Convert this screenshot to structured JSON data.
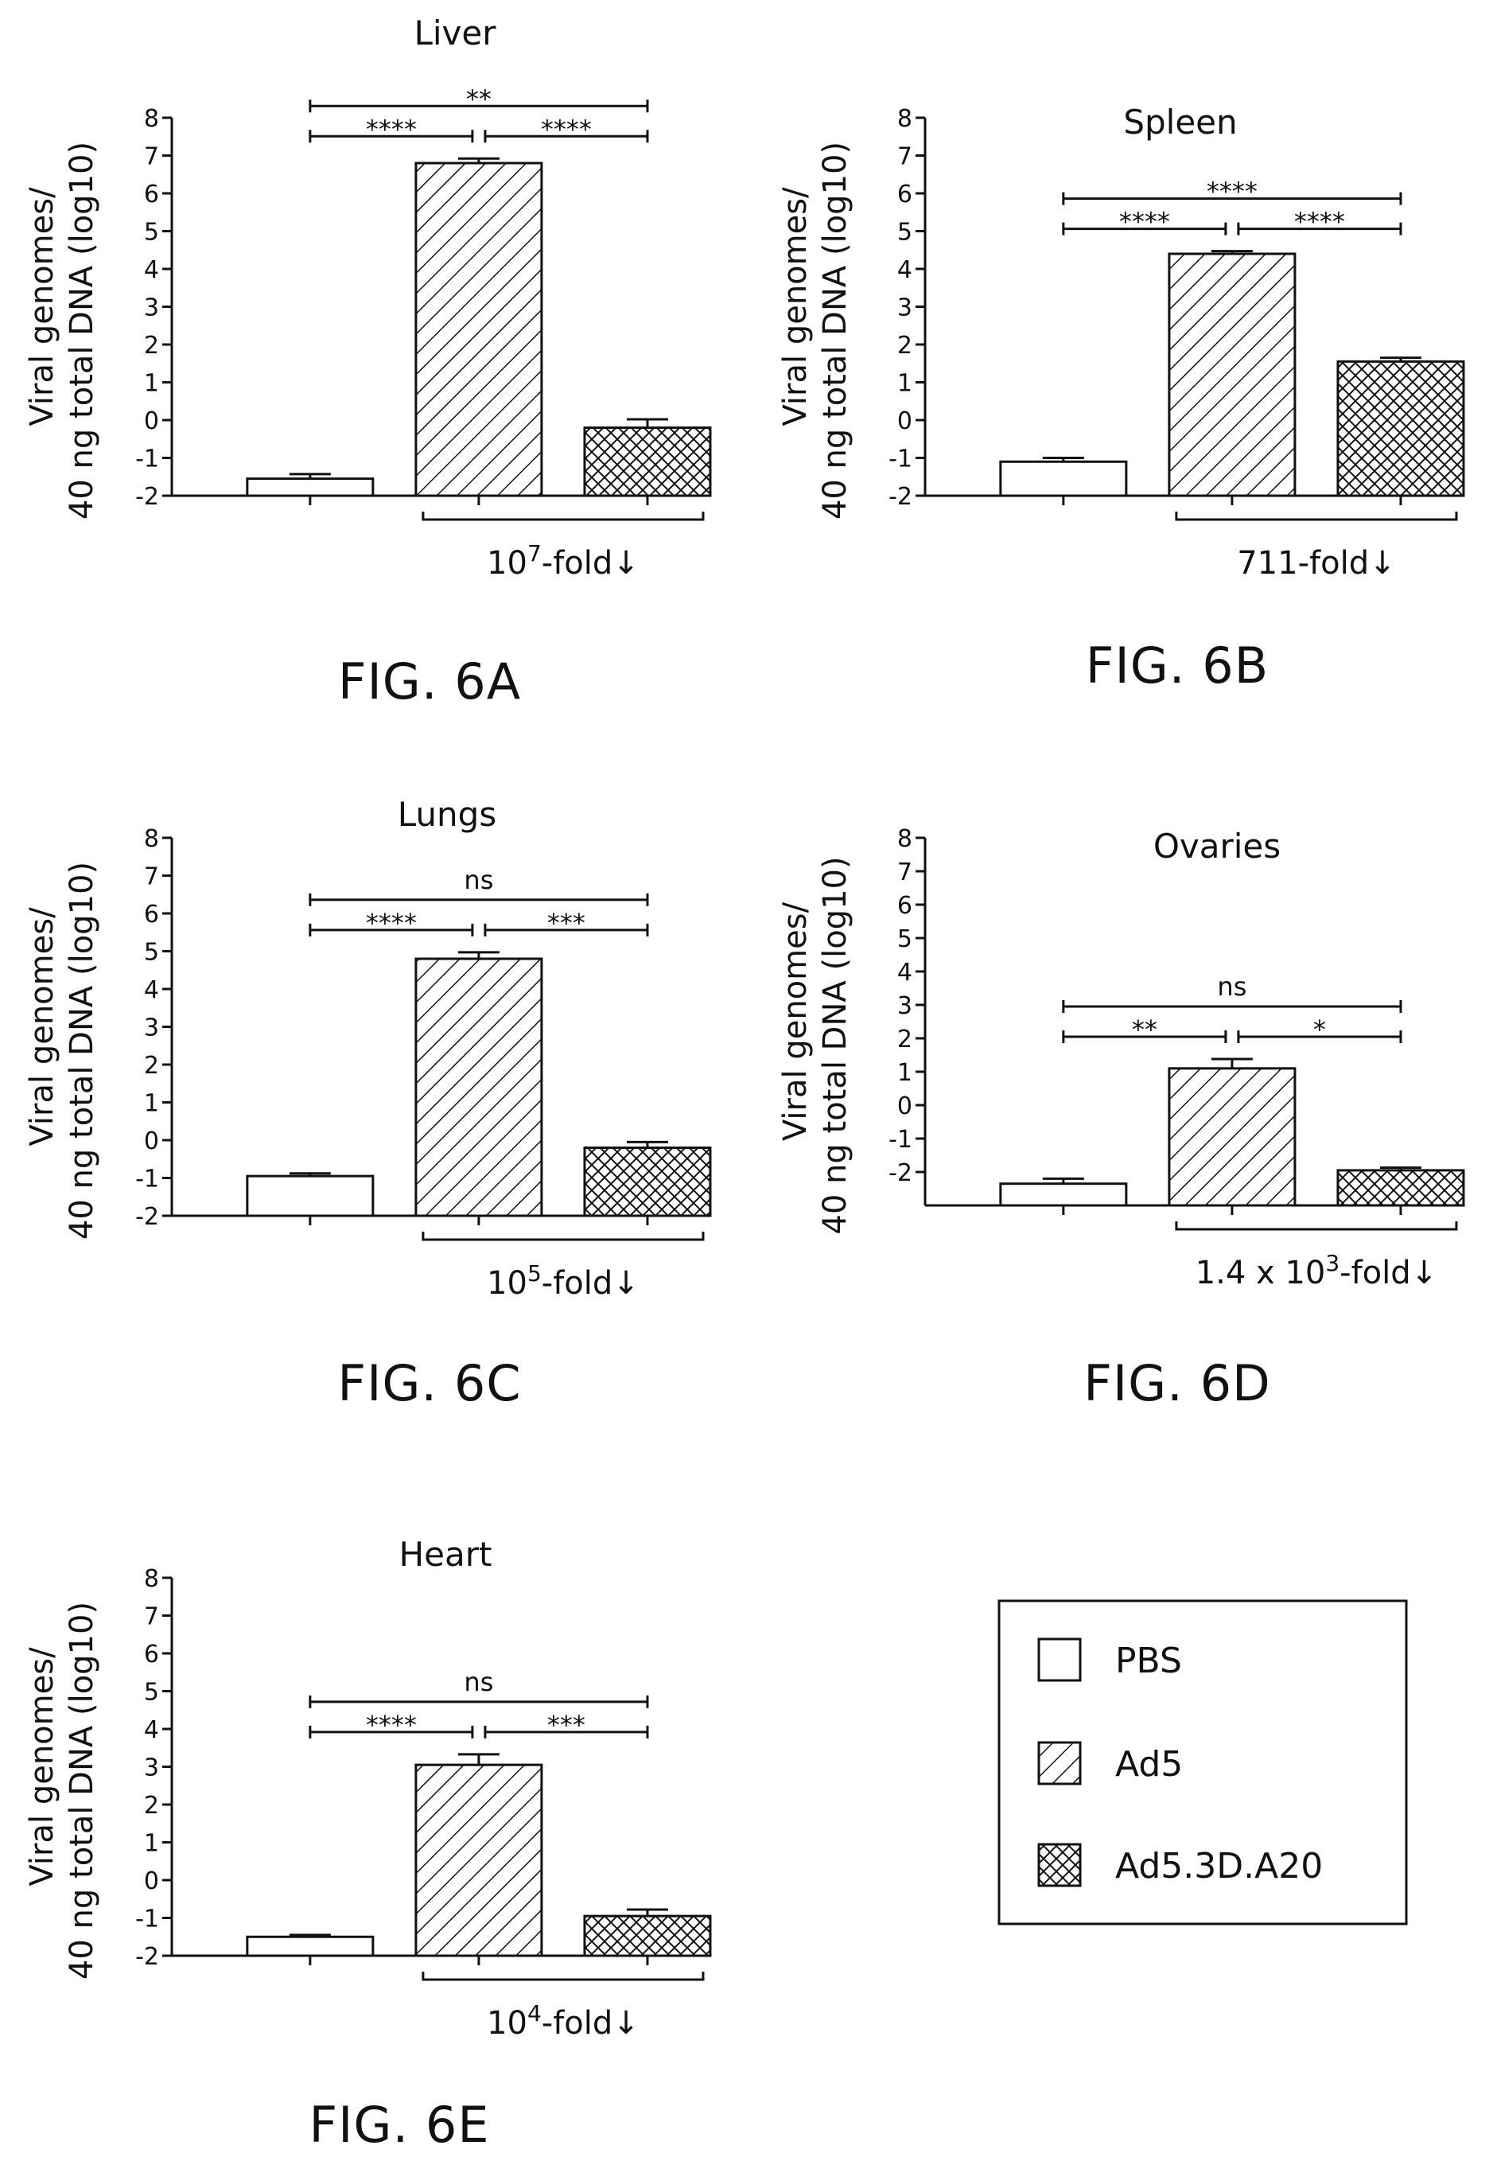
{
  "chart_data": [
    {
      "type": "bar",
      "figure_label": "FIG. 6A",
      "title": "Liver",
      "ylabel_line1": "Viral genomes/",
      "ylabel_line2": "40 ng total DNA (log10)",
      "categories": [
        "PBS",
        "Ad5",
        "Ad5.3D.A20"
      ],
      "values": [
        -1.55,
        6.8,
        -0.2
      ],
      "errors": [
        0.12,
        0.12,
        0.22
      ],
      "ylim": [
        -2,
        8
      ],
      "yticks": [
        "-2",
        "-1",
        "0",
        "1",
        "2",
        "3",
        "4",
        "5",
        "6",
        "7",
        "8"
      ],
      "significance": [
        {
          "from": 0,
          "to": 2,
          "label": "**"
        },
        {
          "from": 0,
          "to": 1,
          "label": "****"
        },
        {
          "from": 1,
          "to": 2,
          "label": "****"
        }
      ],
      "fold_change": {
        "base": "10",
        "sup": "7",
        "suffix": "-fold",
        "arrow": "↓"
      }
    },
    {
      "type": "bar",
      "figure_label": "FIG. 6B",
      "title": "Spleen",
      "ylabel_line1": "Viral genomes/",
      "ylabel_line2": "40 ng total DNA (log10)",
      "categories": [
        "PBS",
        "Ad5",
        "Ad5.3D.A20"
      ],
      "values": [
        -1.1,
        4.4,
        1.55
      ],
      "errors": [
        0.1,
        0.07,
        0.1
      ],
      "ylim": [
        -2,
        8
      ],
      "yticks": [
        "-2",
        "-1",
        "0",
        "1",
        "2",
        "3",
        "4",
        "5",
        "6",
        "7",
        "8"
      ],
      "significance": [
        {
          "from": 0,
          "to": 2,
          "label": "****"
        },
        {
          "from": 0,
          "to": 1,
          "label": "****"
        },
        {
          "from": 1,
          "to": 2,
          "label": "****"
        }
      ],
      "fold_change": {
        "base": "711",
        "sup": "",
        "suffix": "-fold",
        "arrow": "↓"
      }
    },
    {
      "type": "bar",
      "figure_label": "FIG. 6C",
      "title": "Lungs",
      "ylabel_line1": "Viral genomes/",
      "ylabel_line2": "40 ng total DNA (log10)",
      "categories": [
        "PBS",
        "Ad5",
        "Ad5.3D.A20"
      ],
      "values": [
        -0.95,
        4.8,
        -0.2
      ],
      "errors": [
        0.07,
        0.17,
        0.15
      ],
      "ylim": [
        -2,
        8
      ],
      "yticks": [
        "-2",
        "-1",
        "0",
        "1",
        "2",
        "3",
        "4",
        "5",
        "6",
        "7",
        "8"
      ],
      "significance": [
        {
          "from": 0,
          "to": 2,
          "label": "ns"
        },
        {
          "from": 0,
          "to": 1,
          "label": "****"
        },
        {
          "from": 1,
          "to": 2,
          "label": "***"
        }
      ],
      "fold_change": {
        "base": "10",
        "sup": "5",
        "suffix": "-fold",
        "arrow": "↓"
      }
    },
    {
      "type": "bar",
      "figure_label": "FIG. 6D",
      "title": "Ovaries",
      "ylabel_line1": "Viral genomes/",
      "ylabel_line2": "40 ng total DNA (log10)",
      "categories": [
        "PBS",
        "Ad5",
        "Ad5.3D.A20"
      ],
      "values": [
        -2.35,
        1.1,
        -1.95
      ],
      "errors": [
        0.15,
        0.28,
        0.08
      ],
      "ylim": [
        -3,
        8
      ],
      "yticks": [
        "-2",
        "-1",
        "0",
        "1",
        "2",
        "3",
        "4",
        "5",
        "6",
        "7",
        "8"
      ],
      "significance": [
        {
          "from": 0,
          "to": 2,
          "label": "ns"
        },
        {
          "from": 0,
          "to": 1,
          "label": "**"
        },
        {
          "from": 1,
          "to": 2,
          "label": "*"
        }
      ],
      "fold_change": {
        "base": "1.4 x 10",
        "sup": "3",
        "suffix": "-fold",
        "arrow": "↓"
      }
    },
    {
      "type": "bar",
      "figure_label": "FIG. 6E",
      "title": "Heart",
      "ylabel_line1": "Viral genomes/",
      "ylabel_line2": "40 ng total DNA (log10)",
      "categories": [
        "PBS",
        "Ad5",
        "Ad5.3D.A20"
      ],
      "values": [
        -1.5,
        3.05,
        -0.95
      ],
      "errors": [
        0.05,
        0.28,
        0.17
      ],
      "ylim": [
        -2,
        8
      ],
      "yticks": [
        "-2",
        "-1",
        "0",
        "1",
        "2",
        "3",
        "4",
        "5",
        "6",
        "7",
        "8"
      ],
      "significance": [
        {
          "from": 0,
          "to": 2,
          "label": "ns"
        },
        {
          "from": 0,
          "to": 1,
          "label": "****"
        },
        {
          "from": 1,
          "to": 2,
          "label": "***"
        }
      ],
      "fold_change": {
        "base": "10",
        "sup": "4",
        "suffix": "-fold",
        "arrow": "↓"
      }
    }
  ],
  "legend": {
    "items": [
      {
        "label": "PBS",
        "pattern": "empty"
      },
      {
        "label": "Ad5",
        "pattern": "hatch"
      },
      {
        "label": "Ad5.3D.A20",
        "pattern": "crosshatch"
      }
    ]
  },
  "colors": {
    "ink": "#111111",
    "background": "#ffffff"
  }
}
